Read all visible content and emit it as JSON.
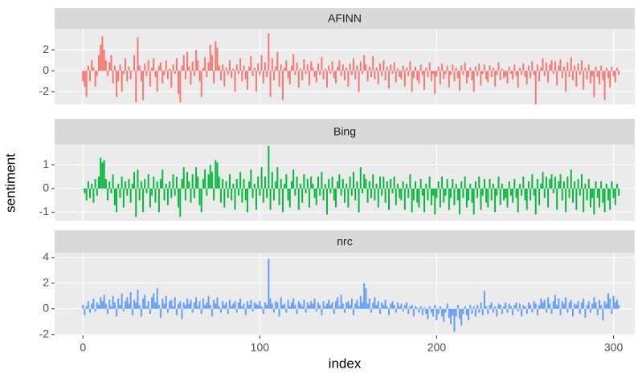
{
  "chart_data": {
    "type": "bar",
    "facet": true,
    "xlabel": "index",
    "ylabel": "sentiment",
    "xlim": [
      -16,
      312
    ],
    "xticks": [
      0,
      100,
      200,
      300
    ],
    "grid": true,
    "x": [
      0,
      1,
      2,
      3,
      4,
      5,
      6,
      7,
      8,
      9,
      10,
      11,
      12,
      13,
      14,
      15,
      16,
      17,
      18,
      19,
      20,
      21,
      22,
      23,
      24,
      25,
      26,
      27,
      28,
      29,
      30,
      31,
      32,
      33,
      34,
      35,
      36,
      37,
      38,
      39,
      40,
      41,
      42,
      43,
      44,
      45,
      46,
      47,
      48,
      49,
      50,
      51,
      52,
      53,
      54,
      55,
      56,
      57,
      58,
      59,
      60,
      61,
      62,
      63,
      64,
      65,
      66,
      67,
      68,
      69,
      70,
      71,
      72,
      73,
      74,
      75,
      76,
      77,
      78,
      79,
      80,
      81,
      82,
      83,
      84,
      85,
      86,
      87,
      88,
      89,
      90,
      91,
      92,
      93,
      94,
      95,
      96,
      97,
      98,
      99,
      100,
      101,
      102,
      103,
      104,
      105,
      106,
      107,
      108,
      109,
      110,
      111,
      112,
      113,
      114,
      115,
      116,
      117,
      118,
      119,
      120,
      121,
      122,
      123,
      124,
      125,
      126,
      127,
      128,
      129,
      130,
      131,
      132,
      133,
      134,
      135,
      136,
      137,
      138,
      139,
      140,
      141,
      142,
      143,
      144,
      145,
      146,
      147,
      148,
      149,
      150,
      151,
      152,
      153,
      154,
      155,
      156,
      157,
      158,
      159,
      160,
      161,
      162,
      163,
      164,
      165,
      166,
      167,
      168,
      169,
      170,
      171,
      172,
      173,
      174,
      175,
      176,
      177,
      178,
      179,
      180,
      181,
      182,
      183,
      184,
      185,
      186,
      187,
      188,
      189,
      190,
      191,
      192,
      193,
      194,
      195,
      196,
      197,
      198,
      199,
      200,
      201,
      202,
      203,
      204,
      205,
      206,
      207,
      208,
      209,
      210,
      211,
      212,
      213,
      214,
      215,
      216,
      217,
      218,
      219,
      220,
      221,
      222,
      223,
      224,
      225,
      226,
      227,
      228,
      229,
      230,
      231,
      232,
      233,
      234,
      235,
      236,
      237,
      238,
      239,
      240,
      241,
      242,
      243,
      244,
      245,
      246,
      247,
      248,
      249,
      250,
      251,
      252,
      253,
      254,
      255,
      256,
      257,
      258,
      259,
      260,
      261,
      262,
      263,
      264,
      265,
      266,
      267,
      268,
      269,
      270,
      271,
      272,
      273,
      274,
      275,
      276,
      277,
      278,
      279,
      280,
      281,
      282,
      283,
      284,
      285,
      286,
      287,
      288,
      289,
      290,
      291,
      292,
      293,
      294,
      295,
      296,
      297,
      298,
      299,
      300,
      301,
      302,
      303
    ],
    "series": [
      {
        "name": "AFINN",
        "color": "#F8766D",
        "ylim": [
          -3.2,
          4
        ],
        "yticks": [
          -2,
          0,
          2
        ],
        "values": [
          -1,
          -1.5,
          -2.5,
          0.5,
          -1,
          1,
          0.3,
          -1.5,
          -0.5,
          1.5,
          2.5,
          3.3,
          2,
          1,
          -0.5,
          0.8,
          1.5,
          -1.2,
          0.5,
          -2.5,
          -1,
          0.6,
          -2,
          -0.3,
          1.2,
          -1,
          0.4,
          -0.8,
          0,
          1.5,
          -3,
          3.2,
          0.5,
          -1,
          -2.8,
          0.7,
          -0.5,
          1,
          -1.5,
          0.3,
          1.2,
          -0.6,
          -2,
          0.5,
          0.8,
          -1.2,
          -0.4,
          1,
          -0.8,
          0.2,
          -1.6,
          0.6,
          -0.3,
          1.2,
          -2.2,
          -3,
          0.5,
          1.5,
          -0.8,
          1.8,
          0.4,
          -1.3,
          0.9,
          -0.5,
          2,
          1,
          -1,
          -2.5,
          0.3,
          1.3,
          -0.6,
          0.8,
          2.5,
          1.5,
          -1.2,
          2.8,
          2.2,
          0.5,
          -0.9,
          0.6,
          -1.5,
          0.3,
          -0.4,
          1,
          -0.7,
          0.2,
          -2,
          0.6,
          -0.3,
          1.2,
          -1,
          0.5,
          -0.8,
          -1.8,
          0.4,
          1.4,
          -0.5,
          0.3,
          -2,
          0.7,
          -0.4,
          1.5,
          -1.2,
          0.8,
          -0.6,
          3.6,
          -2.5,
          1.2,
          -0.9,
          0.4,
          1.8,
          -1.5,
          0.6,
          -2.8,
          0.3,
          1,
          -0.7,
          -1.3,
          0.5,
          1.6,
          -0.4,
          0.8,
          -1.6,
          0.2,
          -0.9,
          1.1,
          -0.3,
          0.6,
          -1.4,
          0.9,
          0.3,
          -0.6,
          -1.1,
          0.7,
          -0.4,
          1.3,
          -0.8,
          0.2,
          -1.6,
          0.5,
          -0.3,
          0.9,
          -0.7,
          -1.2,
          0.4,
          1,
          -0.5,
          0.6,
          -0.9,
          0.3,
          -1.5,
          0.7,
          -0.4,
          1.2,
          -0.8,
          0.5,
          -2,
          0.9,
          -0.3,
          1.5,
          0.6,
          -1,
          0.4,
          -0.6,
          1.4,
          -0.8,
          0.3,
          -1.3,
          0.7,
          -0.5,
          1,
          -0.9,
          0.4,
          -1.7,
          0.6,
          -0.3,
          0.8,
          -1.1,
          0.2,
          -0.6,
          -0.8,
          0.5,
          -1.5,
          0.3,
          -0.5,
          0.9,
          -2,
          -0.7,
          0.4,
          -0.9,
          -1.2,
          0.6,
          -0.4,
          -1.8,
          0.3,
          -0.6,
          0.8,
          -1,
          -0.3,
          -2.2,
          -0.5,
          0.4,
          -1.3,
          0.7,
          -0.8,
          -0.3,
          0.5,
          -1.6,
          -0.4,
          0.6,
          -1,
          0.3,
          -0.7,
          -1.9,
          0.5,
          -0.4,
          0.8,
          -1.2,
          -0.6,
          0.3,
          -0.9,
          -2,
          0.4,
          -0.5,
          0.7,
          -1.4,
          -0.3,
          0.6,
          -0.8,
          -1.1,
          0.5,
          -0.6,
          0.3,
          -1.5,
          -0.4,
          0.8,
          -0.9,
          0.2,
          -0.7,
          -0.5,
          -1.2,
          0.4,
          -0.3,
          -0.8,
          0.6,
          -0.5,
          -1.6,
          0.3,
          -0.4,
          0.7,
          -0.6,
          -1.3,
          0.5,
          -0.7,
          0.9,
          -0.4,
          -3.2,
          0.6,
          -1,
          0.3,
          1.2,
          -0.5,
          0.8,
          -1.1,
          0.6,
          1,
          -0.3,
          0.9,
          -1.4,
          0.5,
          1.1,
          -0.7,
          0.4,
          -2,
          0.8,
          -0.6,
          1.3,
          -0.9,
          0.5,
          -1.5,
          0.7,
          -0.4,
          1,
          -1.8,
          0.3,
          -0.8,
          0.6,
          -1.2,
          -0.5,
          -2.5,
          0.4,
          -0.6,
          -1.3,
          0.5,
          -0.9,
          -2.8,
          0.3,
          -0.7,
          -1.6,
          0.4,
          -0.5,
          -1.1,
          0.3,
          -0.4
        ]
      },
      {
        "name": "Bing",
        "color": "#00BA38",
        "ylim": [
          -1.36,
          1.86
        ],
        "yticks": [
          -1,
          0,
          1
        ],
        "values": [
          0,
          -0.2,
          -0.5,
          0.3,
          -0.4,
          0.2,
          -0.6,
          0.4,
          -0.3,
          0.5,
          1.3,
          1.1,
          1.2,
          0.4,
          -0.5,
          0.3,
          -0.2,
          0.6,
          -0.7,
          -1,
          0.2,
          -0.4,
          0.5,
          -0.8,
          0.3,
          -0.3,
          0.4,
          -0.6,
          0.2,
          0.7,
          -1.2,
          0.8,
          -0.5,
          0.3,
          -1,
          0.4,
          -0.2,
          0.6,
          -0.8,
          -0.3,
          0.5,
          -0.6,
          0.3,
          -1,
          0.4,
          0.8,
          -0.5,
          0.2,
          -0.7,
          0.3,
          -0.4,
          0.6,
          -0.3,
          0.5,
          -0.8,
          -1.2,
          0.4,
          0.9,
          -0.5,
          0.7,
          0.3,
          -0.6,
          0.6,
          -0.4,
          0.9,
          0.5,
          -0.7,
          -1,
          0.4,
          0.8,
          -0.3,
          0.6,
          1,
          0.7,
          -0.5,
          1.2,
          1.1,
          0.5,
          -0.6,
          0.4,
          -0.8,
          0.3,
          -0.4,
          0.6,
          -0.5,
          0.2,
          -0.9,
          0.4,
          -0.3,
          0.7,
          -0.6,
          0.4,
          -0.5,
          -1,
          0.3,
          0.8,
          -0.4,
          0.2,
          -0.9,
          0.5,
          -0.3,
          0.9,
          -0.6,
          0.5,
          -0.4,
          1.8,
          -0.9,
          0.7,
          -0.5,
          0.3,
          0.9,
          -0.7,
          0.4,
          -1,
          0.2,
          0.6,
          -0.5,
          -0.8,
          0.3,
          0.8,
          -0.3,
          0.5,
          -0.9,
          0.2,
          -0.6,
          0.6,
          -0.2,
          0.4,
          -0.8,
          0.5,
          0.2,
          -0.4,
          -0.7,
          0.5,
          -0.3,
          0.7,
          -0.5,
          0.2,
          -1.1,
          0.4,
          -0.2,
          0.5,
          -0.5,
          -0.8,
          0.3,
          0.6,
          -0.3,
          0.4,
          -0.6,
          0.2,
          -0.8,
          0.5,
          -0.3,
          0.7,
          -0.5,
          0.3,
          -1,
          0.9,
          -0.2,
          0.6,
          0.4,
          -0.6,
          0.3,
          -0.4,
          0.6,
          -0.5,
          0.2,
          -0.8,
          0.5,
          -0.3,
          0.5,
          -0.6,
          0.3,
          -0.9,
          0.4,
          -0.2,
          0.5,
          -0.7,
          0.2,
          -0.4,
          -0.5,
          0.3,
          -0.9,
          0.2,
          -0.4,
          0.6,
          -1,
          -0.5,
          0.3,
          -0.6,
          -0.8,
          0.4,
          -0.3,
          -1,
          0.2,
          -0.5,
          0.5,
          -0.7,
          -0.3,
          -1.1,
          -0.4,
          0.3,
          -0.8,
          0.5,
          -0.6,
          -0.3,
          0.4,
          -0.9,
          -0.4,
          0.4,
          -0.7,
          0.2,
          -0.5,
          -1.1,
          0.3,
          -0.4,
          0.5,
          -0.8,
          -0.5,
          0.2,
          -0.6,
          -1.1,
          0.3,
          -0.4,
          0.5,
          -0.9,
          -0.3,
          0.4,
          -0.6,
          -0.8,
          0.4,
          -0.5,
          0.2,
          -1,
          -0.3,
          0.5,
          -0.7,
          0.2,
          -0.5,
          -0.4,
          -0.8,
          0.3,
          -0.3,
          -0.6,
          0.4,
          -0.4,
          -1,
          0.2,
          -0.3,
          0.5,
          -0.5,
          -0.9,
          0.3,
          -0.5,
          0.6,
          -0.3,
          -1.1,
          0.4,
          -0.7,
          0.2,
          0.7,
          -0.4,
          0.5,
          -0.8,
          0.4,
          0.6,
          -0.2,
          0.5,
          -0.9,
          0.3,
          0.6,
          -0.5,
          0.3,
          -1,
          0.5,
          -0.4,
          0.8,
          -0.6,
          0.3,
          -0.9,
          0.4,
          -0.3,
          0.6,
          -1,
          0.2,
          -0.5,
          0.4,
          -0.8,
          -0.4,
          -1.1,
          0.3,
          -0.4,
          -0.8,
          0.3,
          -0.6,
          -1,
          0.2,
          -0.5,
          -0.9,
          0.3,
          -0.4,
          -0.7,
          0.2,
          -0.3
        ]
      },
      {
        "name": "nrc",
        "color": "#619CFF",
        "ylim": [
          -2.08,
          4.37
        ],
        "yticks": [
          -2,
          0,
          2,
          4
        ],
        "values": [
          0.3,
          -0.5,
          0.2,
          0.6,
          -0.3,
          0.4,
          0.8,
          -0.2,
          0.5,
          0.3,
          0.9,
          0.6,
          1.1,
          0.4,
          -0.4,
          0.7,
          0.2,
          1,
          0.5,
          -0.6,
          0.8,
          0.3,
          1.2,
          -0.2,
          0.6,
          0.9,
          0.4,
          1.3,
          -0.5,
          0.7,
          0.5,
          1.5,
          0.3,
          -0.6,
          0.8,
          1.1,
          0.2,
          0.6,
          -0.4,
          0.9,
          1.2,
          0.5,
          1.6,
          0.3,
          -0.7,
          0.8,
          0.4,
          1,
          -0.3,
          0.6,
          0.7,
          0.2,
          0.9,
          -0.5,
          0.4,
          0.6,
          -0.8,
          0.5,
          0.3,
          0.8,
          0.4,
          0.7,
          -0.3,
          0.5,
          0.9,
          0.2,
          0.6,
          -0.4,
          0.8,
          0.3,
          0.5,
          1,
          0.3,
          -0.6,
          0.7,
          0.4,
          0.9,
          0.2,
          -0.3,
          0.6,
          0.3,
          0.5,
          -0.4,
          0.7,
          0.2,
          0.4,
          0.6,
          -0.3,
          0.5,
          0.8,
          0.2,
          0.4,
          -0.5,
          0.6,
          0.3,
          0.7,
          -0.2,
          0.5,
          0.4,
          0.3,
          0.6,
          0.2,
          -0.4,
          0.5,
          0.3,
          3.9,
          0.8,
          0.4,
          -0.3,
          0.6,
          0.5,
          -0.6,
          0.9,
          0.3,
          0.4,
          -0.3,
          0.7,
          0.2,
          0.5,
          0.8,
          0.3,
          -0.4,
          0.6,
          0.4,
          0.2,
          0.7,
          -0.3,
          0.5,
          0.3,
          0.6,
          0.4,
          0.8,
          -0.2,
          0.5,
          0.3,
          -0.5,
          0.6,
          0.2,
          0.4,
          0.7,
          0.3,
          0.5,
          -0.4,
          0.6,
          0.9,
          0.2,
          1.1,
          0.4,
          -0.3,
          0.5,
          0.6,
          0.3,
          0.8,
          -0.5,
          0.4,
          0.7,
          0.2,
          1,
          0.5,
          2,
          1.6,
          0.4,
          0.8,
          -0.3,
          0.5,
          0.9,
          0.3,
          0.6,
          -0.4,
          0.5,
          0.3,
          0.7,
          0.2,
          -0.5,
          0.4,
          0.6,
          0.3,
          -0.3,
          0.5,
          0.2,
          0.4,
          -0.2,
          0.3,
          0.5,
          -0.4,
          0.2,
          0.3,
          -0.6,
          0.2,
          0.1,
          -0.3,
          0.2,
          -0.5,
          0.1,
          -0.4,
          -0.8,
          0.2,
          -0.3,
          -0.6,
          0.3,
          -0.9,
          -0.4,
          0.2,
          -0.6,
          -1,
          -0.3,
          0.4,
          -0.7,
          -1.2,
          -0.5,
          -1.8,
          -0.6,
          0.3,
          -0.8,
          -1.3,
          -0.4,
          0.2,
          -0.5,
          -0.9,
          0.3,
          -0.4,
          0.2,
          -0.6,
          0.3,
          -0.3,
          0.5,
          -0.5,
          1.4,
          0.2,
          -0.4,
          0.3,
          0.5,
          -0.3,
          0.2,
          -0.6,
          0.4,
          0.3,
          -0.4,
          0.2,
          0.5,
          -0.3,
          0.4,
          0.2,
          -0.5,
          0.3,
          0.5,
          -0.2,
          0.4,
          -0.6,
          0.3,
          0.2,
          -0.4,
          0.5,
          0.3,
          -0.3,
          0.6,
          0.4,
          -0.5,
          0.3,
          0.8,
          0.5,
          0.7,
          -0.3,
          0.9,
          0.4,
          -0.4,
          0.6,
          1.1,
          0.3,
          0.8,
          -0.5,
          0.6,
          0.4,
          0.9,
          -0.3,
          0.5,
          0.7,
          -0.6,
          0.4,
          0.3,
          0.6,
          -0.4,
          0.5,
          0.8,
          -0.7,
          0.3,
          0.6,
          -0.3,
          0.4,
          0.9,
          0.5,
          -0.5,
          0.7,
          0.3,
          -0.9,
          0.6,
          0.4,
          1.2,
          0.8,
          -0.4,
          1,
          0.5,
          0.7,
          0.3
        ]
      }
    ]
  }
}
